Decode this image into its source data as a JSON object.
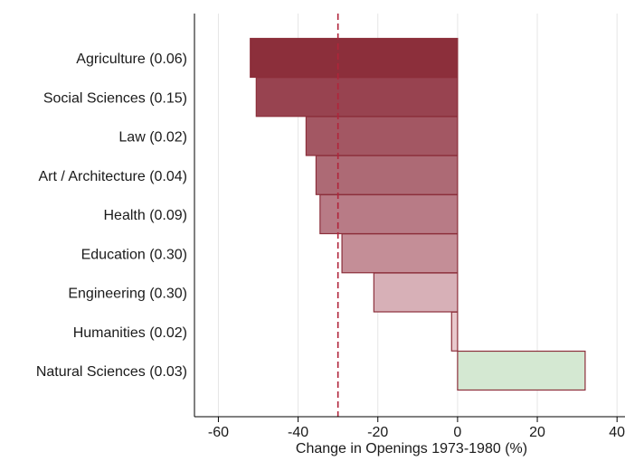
{
  "chart_data": {
    "type": "bar",
    "orientation": "horizontal",
    "categories": [
      "Agriculture (0.06)",
      "Social Sciences (0.15)",
      "Law (0.02)",
      "Art / Architecture (0.04)",
      "Health (0.09)",
      "Education (0.30)",
      "Engineering (0.30)",
      "Humanities (0.02)",
      "Natural Sciences (0.03)"
    ],
    "values": [
      -52,
      -50.5,
      -38,
      -35.5,
      -34.5,
      -29,
      -21,
      -1.5,
      32
    ],
    "bar_colors": [
      "#8c2f3b",
      "#984350",
      "#a35763",
      "#ad6a75",
      "#b87b86",
      "#c48e97",
      "#d7b0b7",
      "#e9c9cd",
      "#d4e8d2"
    ],
    "bar_edge_color": "#8c2f3b",
    "xlabel": "Change in Openings 1973-1980 (%)",
    "xlim": [
      -66,
      42
    ],
    "xticks": [
      -60,
      -40,
      -20,
      0,
      20,
      40
    ],
    "xtick_labels": [
      "-60",
      "-40",
      "-20",
      "0",
      "20",
      "40"
    ],
    "reference_line": {
      "x": -30,
      "color": "#b0243a",
      "style": "dashed"
    },
    "grid": {
      "vertical": true,
      "color": "#e6e6e6"
    }
  }
}
